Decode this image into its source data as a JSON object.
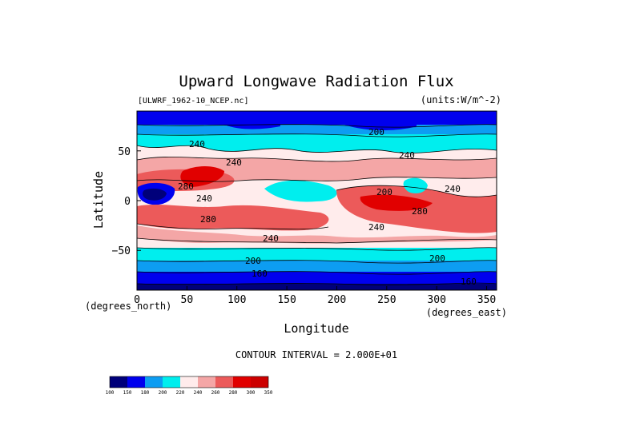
{
  "title": "Upward Longwave Radiation Flux",
  "source_label": "[ULWRF_1962-10_NCEP.nc]",
  "units_label": "(units:W/m^-2)",
  "x_axis": {
    "label": "Longitude",
    "unit_note": "(degrees_east)",
    "ticks": [
      "0",
      "50",
      "100",
      "150",
      "200",
      "250",
      "300",
      "350"
    ]
  },
  "y_axis": {
    "label": "Latitude",
    "unit_note": "(degrees_north)",
    "ticks": [
      "50",
      "0",
      "−50"
    ]
  },
  "contour_interval_text": "CONTOUR INTERVAL = 2.000E+01",
  "contour_labels": [
    "200",
    "240",
    "240",
    "280",
    "240",
    "280",
    "240",
    "200",
    "160",
    "200",
    "240",
    "240",
    "280",
    "240",
    "200",
    "160"
  ],
  "colorbar": {
    "levels": [
      "100",
      "150",
      "180",
      "200",
      "220",
      "240",
      "260",
      "280",
      "300",
      "350"
    ],
    "colors": [
      "#00007a",
      "#0000ee",
      "#0d9df2",
      "#00eeee",
      "#ffecec",
      "#f4a6a6",
      "#ec5a5a",
      "#e10000",
      "#cc0000"
    ]
  },
  "chart_data": {
    "type": "heatmap",
    "title": "Upward Longwave Radiation Flux",
    "xlabel": "Longitude",
    "ylabel": "Latitude",
    "xlim": [
      0,
      360
    ],
    "ylim": [
      -90,
      90
    ],
    "x_ticks": [
      0,
      50,
      100,
      150,
      200,
      250,
      300,
      350
    ],
    "y_ticks": [
      50,
      0,
      -50
    ],
    "contour_interval": 20,
    "levels": [
      100,
      150,
      180,
      200,
      220,
      240,
      260,
      280,
      300,
      350
    ],
    "x": [
      0,
      30,
      60,
      90,
      120,
      150,
      180,
      210,
      240,
      270,
      300,
      330,
      360
    ],
    "y": [
      80,
      60,
      40,
      20,
      0,
      -20,
      -40,
      -60,
      -80
    ],
    "values": [
      [
        150,
        160,
        170,
        165,
        155,
        150,
        160,
        165,
        160,
        150,
        155,
        160,
        150
      ],
      [
        200,
        210,
        205,
        200,
        195,
        190,
        200,
        205,
        210,
        200,
        205,
        210,
        200
      ],
      [
        240,
        235,
        245,
        240,
        230,
        225,
        240,
        250,
        255,
        245,
        240,
        235,
        240
      ],
      [
        250,
        290,
        285,
        250,
        230,
        240,
        265,
        270,
        265,
        245,
        230,
        260,
        250
      ],
      [
        180,
        240,
        230,
        220,
        215,
        225,
        260,
        280,
        285,
        270,
        240,
        275,
        180
      ],
      [
        280,
        285,
        275,
        280,
        285,
        270,
        265,
        275,
        270,
        260,
        270,
        280,
        280
      ],
      [
        240,
        245,
        250,
        240,
        245,
        250,
        245,
        240,
        235,
        240,
        245,
        240,
        240
      ],
      [
        200,
        205,
        200,
        195,
        200,
        205,
        200,
        200,
        195,
        200,
        205,
        200,
        200
      ],
      [
        155,
        150,
        160,
        165,
        160,
        150,
        155,
        160,
        150,
        155,
        160,
        150,
        155
      ]
    ]
  }
}
